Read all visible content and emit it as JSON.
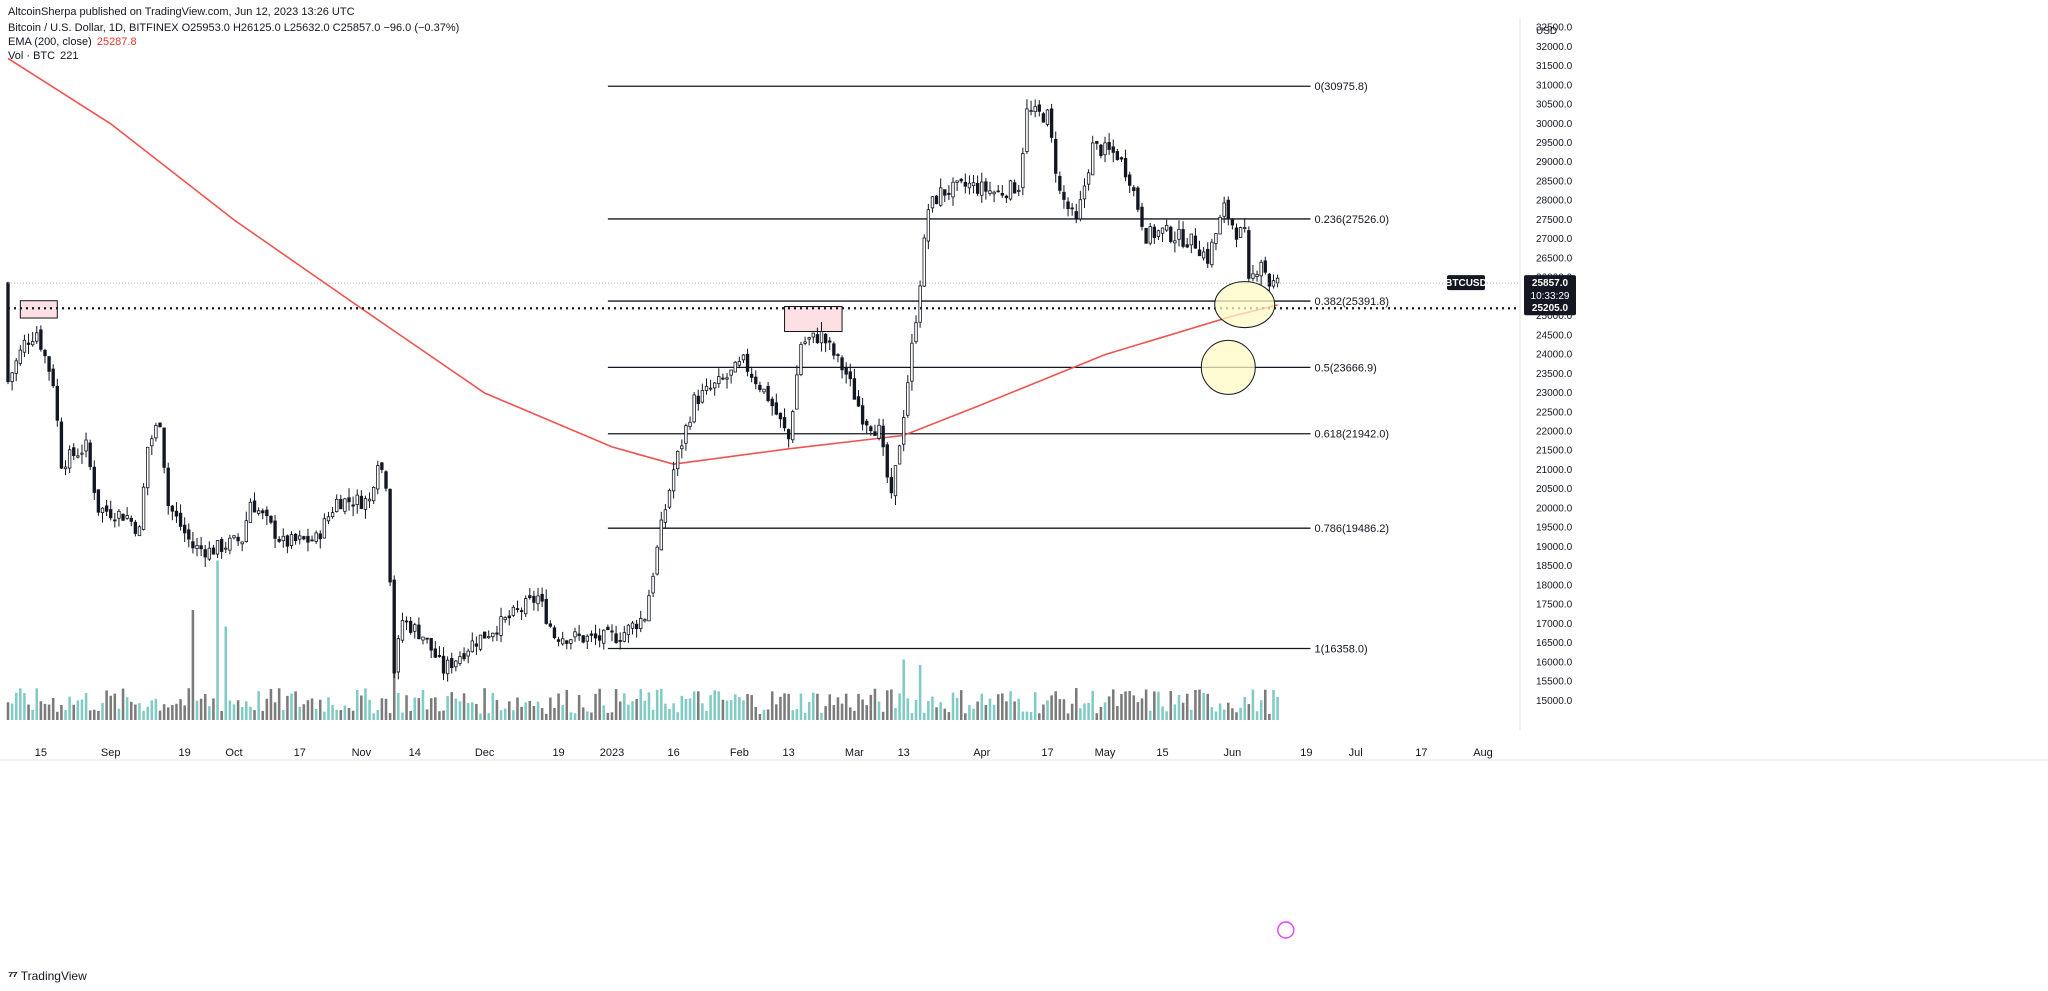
{
  "header": {
    "published": "AltcoinSherpa published on TradingView.com, Jun 12, 2023 13:26 UTC",
    "symbol_line": "Bitcoin / U.S. Dollar, 1D, BITFINEX  O25953.0  H26125.0  L25632.0  C25857.0  −96.0 (−0.37%)",
    "ema_label": "EMA (200, close)",
    "ema_value": "25287.8",
    "vol_label": "Vol · BTC",
    "vol_value": "221"
  },
  "footer": {
    "logo_text": "TradingView",
    "logo_icon": "tradingview-logo-icon"
  },
  "colors": {
    "ema": "#ef5350",
    "bull_candle": "#ffffff",
    "bear_candle": "#131722",
    "vol_up": "#80cbc4",
    "vol_down": "#7b7b7b",
    "zone_fill": "#fde0e3",
    "circle_fill": "#fff9c4"
  },
  "chart_data": {
    "type": "candlestick",
    "y_axis": {
      "unit": "USD",
      "range": [
        14500,
        32750
      ],
      "ticks": [
        15000,
        15500,
        16000,
        16500,
        17000,
        17500,
        18000,
        18500,
        19000,
        19500,
        20000,
        20500,
        21000,
        21500,
        22000,
        22500,
        23000,
        23500,
        24000,
        24500,
        25000,
        25500,
        26000,
        26500,
        27000,
        27500,
        28000,
        28500,
        29000,
        29500,
        30000,
        30500,
        31000,
        31500,
        32000,
        32500
      ],
      "tick_labels": [
        "15000.0",
        "15500.0",
        "16000.0",
        "16500.0",
        "17000.0",
        "17500.0",
        "18000.0",
        "18500.0",
        "19000.0",
        "19500.0",
        "20000.0",
        "20500.0",
        "21000.0",
        "21500.0",
        "22000.0",
        "22500.0",
        "23000.0",
        "23500.0",
        "24000.0",
        "24500.0",
        "25000.0",
        "25500.0",
        "26000.0",
        "26500.0",
        "27000.0",
        "27500.0",
        "28000.0",
        "28500.0",
        "29000.0",
        "29500.0",
        "30000.0",
        "30500.0",
        "31000.0",
        "31500.0",
        "32000.0",
        "32500.0"
      ]
    },
    "x_axis": {
      "range": [
        "2022-08-07",
        "2023-08-10"
      ],
      "ticks": [
        {
          "date": "2022-08-15",
          "label": "15"
        },
        {
          "date": "2022-09-01",
          "label": "Sep"
        },
        {
          "date": "2022-09-19",
          "label": "19"
        },
        {
          "date": "2022-10-01",
          "label": "Oct"
        },
        {
          "date": "2022-10-17",
          "label": "17"
        },
        {
          "date": "2022-11-01",
          "label": "Nov"
        },
        {
          "date": "2022-11-14",
          "label": "14"
        },
        {
          "date": "2022-12-01",
          "label": "Dec"
        },
        {
          "date": "2022-12-19",
          "label": "19"
        },
        {
          "date": "2023-01-01",
          "label": "2023"
        },
        {
          "date": "2023-01-16",
          "label": "16"
        },
        {
          "date": "2023-02-01",
          "label": "Feb"
        },
        {
          "date": "2023-02-13",
          "label": "13"
        },
        {
          "date": "2023-03-01",
          "label": "Mar"
        },
        {
          "date": "2023-03-13",
          "label": "13"
        },
        {
          "date": "2023-04-01",
          "label": "Apr"
        },
        {
          "date": "2023-04-17",
          "label": "17"
        },
        {
          "date": "2023-05-01",
          "label": "May"
        },
        {
          "date": "2023-05-15",
          "label": "15"
        },
        {
          "date": "2023-06-01",
          "label": "Jun"
        },
        {
          "date": "2023-06-19",
          "label": "19"
        },
        {
          "date": "2023-07-01",
          "label": "Jul"
        },
        {
          "date": "2023-07-17",
          "label": "17"
        },
        {
          "date": "2023-08-01",
          "label": "Aug"
        }
      ]
    },
    "price_path": [
      {
        "date": "2022-08-07",
        "value": 23300
      },
      {
        "date": "2022-08-11",
        "value": 24300
      },
      {
        "date": "2022-08-14",
        "value": 24600
      },
      {
        "date": "2022-08-18",
        "value": 23300
      },
      {
        "date": "2022-08-20",
        "value": 21200
      },
      {
        "date": "2022-08-26",
        "value": 21600
      },
      {
        "date": "2022-08-29",
        "value": 20000
      },
      {
        "date": "2022-09-05",
        "value": 19800
      },
      {
        "date": "2022-09-08",
        "value": 19400
      },
      {
        "date": "2022-09-10",
        "value": 21600
      },
      {
        "date": "2022-09-13",
        "value": 22300
      },
      {
        "date": "2022-09-15",
        "value": 20100
      },
      {
        "date": "2022-09-21",
        "value": 19000
      },
      {
        "date": "2022-09-25",
        "value": 18900
      },
      {
        "date": "2022-10-03",
        "value": 19200
      },
      {
        "date": "2022-10-05",
        "value": 20200
      },
      {
        "date": "2022-10-13",
        "value": 19100
      },
      {
        "date": "2022-10-21",
        "value": 19200
      },
      {
        "date": "2022-10-26",
        "value": 20200
      },
      {
        "date": "2022-11-03",
        "value": 20200
      },
      {
        "date": "2022-11-05",
        "value": 21300
      },
      {
        "date": "2022-11-07",
        "value": 20700
      },
      {
        "date": "2022-11-09",
        "value": 15800
      },
      {
        "date": "2022-11-11",
        "value": 17100
      },
      {
        "date": "2022-11-16",
        "value": 16700
      },
      {
        "date": "2022-11-21",
        "value": 15800
      },
      {
        "date": "2022-11-28",
        "value": 16500
      },
      {
        "date": "2022-12-05",
        "value": 17000
      },
      {
        "date": "2022-12-14",
        "value": 17700
      },
      {
        "date": "2022-12-18",
        "value": 16700
      },
      {
        "date": "2022-12-28",
        "value": 16600
      },
      {
        "date": "2023-01-03",
        "value": 16700
      },
      {
        "date": "2023-01-09",
        "value": 17200
      },
      {
        "date": "2023-01-13",
        "value": 19500
      },
      {
        "date": "2023-01-16",
        "value": 21000
      },
      {
        "date": "2023-01-21",
        "value": 22800
      },
      {
        "date": "2023-01-29",
        "value": 23400
      },
      {
        "date": "2023-02-02",
        "value": 23800
      },
      {
        "date": "2023-02-08",
        "value": 22900
      },
      {
        "date": "2023-02-13",
        "value": 21800
      },
      {
        "date": "2023-02-16",
        "value": 24300
      },
      {
        "date": "2023-02-21",
        "value": 24500
      },
      {
        "date": "2023-02-27",
        "value": 23500
      },
      {
        "date": "2023-03-03",
        "value": 22400
      },
      {
        "date": "2023-03-07",
        "value": 22000
      },
      {
        "date": "2023-03-10",
        "value": 20200
      },
      {
        "date": "2023-03-13",
        "value": 22500
      },
      {
        "date": "2023-03-16",
        "value": 25000
      },
      {
        "date": "2023-03-19",
        "value": 27800
      },
      {
        "date": "2023-03-22",
        "value": 28200
      },
      {
        "date": "2023-03-29",
        "value": 28400
      },
      {
        "date": "2023-04-05",
        "value": 28200
      },
      {
        "date": "2023-04-10",
        "value": 28400
      },
      {
        "date": "2023-04-12",
        "value": 30300
      },
      {
        "date": "2023-04-17",
        "value": 30200
      },
      {
        "date": "2023-04-20",
        "value": 28200
      },
      {
        "date": "2023-04-24",
        "value": 27400
      },
      {
        "date": "2023-04-28",
        "value": 29400
      },
      {
        "date": "2023-05-04",
        "value": 29200
      },
      {
        "date": "2023-05-07",
        "value": 28600
      },
      {
        "date": "2023-05-11",
        "value": 27100
      },
      {
        "date": "2023-05-15",
        "value": 27200
      },
      {
        "date": "2023-05-23",
        "value": 26900
      },
      {
        "date": "2023-05-26",
        "value": 26500
      },
      {
        "date": "2023-05-30",
        "value": 27800
      },
      {
        "date": "2023-06-02",
        "value": 27200
      },
      {
        "date": "2023-06-04",
        "value": 27100
      },
      {
        "date": "2023-06-05",
        "value": 25800
      },
      {
        "date": "2023-06-08",
        "value": 26500
      },
      {
        "date": "2023-06-10",
        "value": 25850
      },
      {
        "date": "2023-06-12",
        "value": 25857
      }
    ],
    "ema_200": [
      {
        "date": "2022-08-07",
        "value": 31700
      },
      {
        "date": "2022-09-01",
        "value": 30000
      },
      {
        "date": "2022-10-01",
        "value": 27500
      },
      {
        "date": "2022-11-01",
        "value": 25200
      },
      {
        "date": "2022-12-01",
        "value": 23000
      },
      {
        "date": "2023-01-01",
        "value": 21600
      },
      {
        "date": "2023-01-16",
        "value": 21150
      },
      {
        "date": "2023-02-13",
        "value": 21550
      },
      {
        "date": "2023-03-13",
        "value": 21900
      },
      {
        "date": "2023-04-01",
        "value": 22700
      },
      {
        "date": "2023-05-01",
        "value": 24000
      },
      {
        "date": "2023-06-01",
        "value": 25000
      },
      {
        "date": "2023-06-12",
        "value": 25287.8
      }
    ],
    "fibonacci": {
      "start_date": "2022-12-31",
      "end_date": "2023-06-20",
      "levels": [
        {
          "ratio": "0",
          "price": 30975.8,
          "label": "0(30975.8)"
        },
        {
          "ratio": "0.236",
          "price": 27526.0,
          "label": "0.236(27526.0)"
        },
        {
          "ratio": "0.382",
          "price": 25391.8,
          "label": "0.382(25391.8)"
        },
        {
          "ratio": "0.5",
          "price": 23666.9,
          "label": "0.5(23666.9)"
        },
        {
          "ratio": "0.618",
          "price": 21942.0,
          "label": "0.618(21942.0)"
        },
        {
          "ratio": "0.786",
          "price": 19486.2,
          "label": "0.786(19486.2)"
        },
        {
          "ratio": "1",
          "price": 16358.0,
          "label": "1(16358.0)"
        }
      ]
    },
    "support_line": {
      "price": 25205.0,
      "label": "25205.0",
      "style": "dotted"
    },
    "current_price": {
      "symbol": "BTCUSD",
      "price": "25857.0",
      "countdown": "10:33:29"
    },
    "zones": [
      {
        "start_date": "2022-08-10",
        "end_date": "2022-08-19",
        "top": 25400,
        "bottom": 24950
      },
      {
        "start_date": "2023-02-12",
        "end_date": "2023-02-26",
        "top": 25250,
        "bottom": 24600
      }
    ],
    "circles": [
      {
        "date": "2023-06-04",
        "price": 25300
      },
      {
        "date": "2023-05-31",
        "price": 23666.9
      }
    ],
    "volume_spikes": [
      {
        "date": "2022-09-21",
        "value": 1.0
      },
      {
        "date": "2022-09-27",
        "value": 1.45
      },
      {
        "date": "2022-09-29",
        "value": 0.85
      },
      {
        "date": "2022-11-09",
        "value": 0.8
      },
      {
        "date": "2023-03-13",
        "value": 0.55
      },
      {
        "date": "2023-03-17",
        "value": 0.5
      }
    ]
  }
}
